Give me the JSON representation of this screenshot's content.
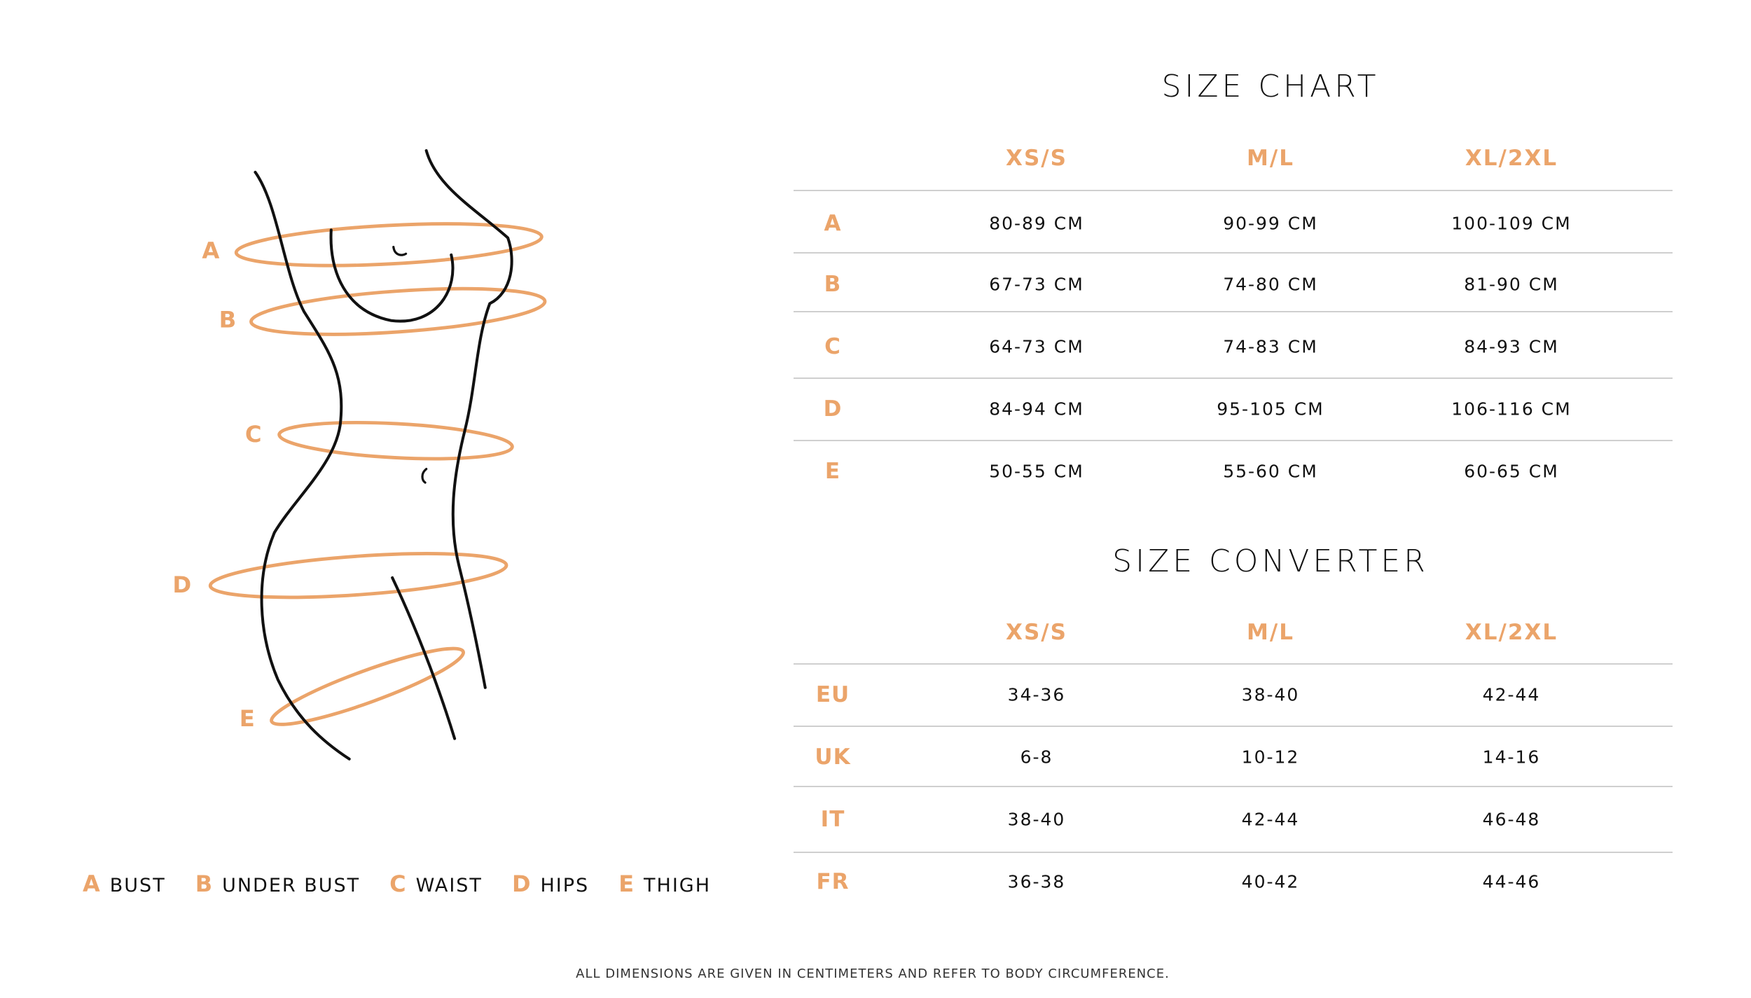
{
  "colors": {
    "accent": "#eba46a",
    "text": "#111111",
    "rule": "#cfcfcf"
  },
  "figure": {
    "labels": [
      "A",
      "B",
      "C",
      "D",
      "E"
    ]
  },
  "legend": [
    {
      "key": "A",
      "label": "BUST"
    },
    {
      "key": "B",
      "label": "UNDER BUST"
    },
    {
      "key": "C",
      "label": "WAIST"
    },
    {
      "key": "D",
      "label": "HIPS"
    },
    {
      "key": "E",
      "label": "THIGH"
    }
  ],
  "size_chart": {
    "title": "SIZE CHART",
    "columns": [
      "XS/S",
      "M/L",
      "XL/2XL"
    ],
    "rows": [
      {
        "label": "A",
        "values": [
          "80-89 CM",
          "90-99 CM",
          "100-109 CM"
        ]
      },
      {
        "label": "B",
        "values": [
          "67-73 CM",
          "74-80 CM",
          "81-90 CM"
        ]
      },
      {
        "label": "C",
        "values": [
          "64-73 CM",
          "74-83 CM",
          "84-93 CM"
        ]
      },
      {
        "label": "D",
        "values": [
          "84-94 CM",
          "95-105 CM",
          "106-116 CM"
        ]
      },
      {
        "label": "E",
        "values": [
          "50-55 CM",
          "55-60 CM",
          "60-65 CM"
        ]
      }
    ]
  },
  "size_converter": {
    "title": "SIZE CONVERTER",
    "columns": [
      "XS/S",
      "M/L",
      "XL/2XL"
    ],
    "rows": [
      {
        "label": "EU",
        "values": [
          "34-36",
          "38-40",
          "42-44"
        ]
      },
      {
        "label": "UK",
        "values": [
          "6-8",
          "10-12",
          "14-16"
        ]
      },
      {
        "label": "IT",
        "values": [
          "38-40",
          "42-44",
          "46-48"
        ]
      },
      {
        "label": "FR",
        "values": [
          "36-38",
          "40-42",
          "44-46"
        ]
      }
    ]
  },
  "footer": "ALL DIMENSIONS ARE GIVEN IN CENTIMETERS AND REFER TO BODY CIRCUMFERENCE."
}
